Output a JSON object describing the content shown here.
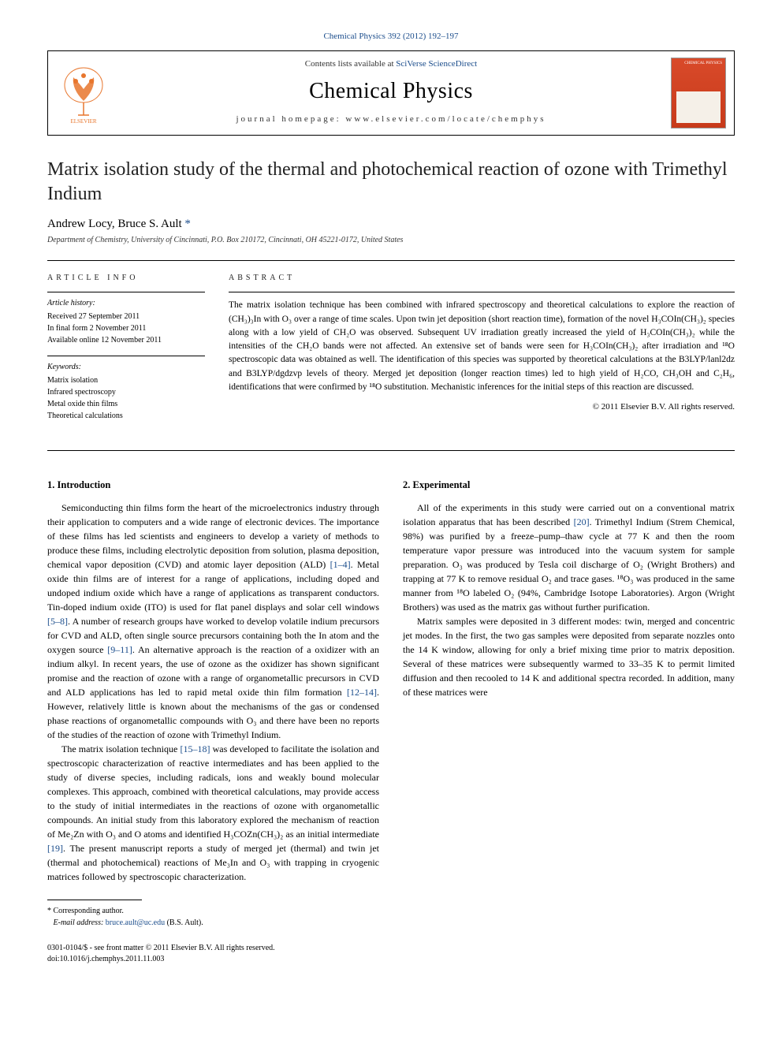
{
  "header": {
    "citation_link_text": "Chemical Physics 392 (2012) 192–197",
    "citation_url": "#"
  },
  "masthead": {
    "contents_prefix": "Contents lists available at ",
    "contents_link_text": "SciVerse ScienceDirect",
    "journal_name": "Chemical Physics",
    "homepage_prefix": "journal homepage: ",
    "homepage_url_text": "www.elsevier.com/locate/chemphys"
  },
  "article": {
    "title": "Matrix isolation study of the thermal and photochemical reaction of ozone with Trimethyl Indium",
    "authors_html": "Andrew Locy, Bruce S. Ault",
    "corresponding_marker": "*",
    "affiliation": "Department of Chemistry, University of Cincinnati, P.O. Box 210172, Cincinnati, OH 45221-0172, United States"
  },
  "info": {
    "heading": "ARTICLE INFO",
    "history_label": "Article history:",
    "received": "Received 27 September 2011",
    "final_form": "In final form 2 November 2011",
    "online": "Available online 12 November 2011",
    "keywords_label": "Keywords:",
    "keywords": [
      "Matrix isolation",
      "Infrared spectroscopy",
      "Metal oxide thin films",
      "Theoretical calculations"
    ]
  },
  "abstract": {
    "heading": "ABSTRACT",
    "text": "The matrix isolation technique has been combined with infrared spectroscopy and theoretical calculations to explore the reaction of (CH₃)₃In with O₃ over a range of time scales. Upon twin jet deposition (short reaction time), formation of the novel H₃COIn(CH₃)₂ species along with a low yield of CH₂O was observed. Subsequent UV irradiation greatly increased the yield of H₃COIn(CH₃)₂ while the intensities of the CH₂O bands were not affected. An extensive set of bands were seen for H₃COIn(CH₃)₂ after irradiation and ¹⁸O spectroscopic data was obtained as well. The identification of this species was supported by theoretical calculations at the B3LYP/lanl2dz and B3LYP/dgdzvp levels of theory. Merged jet deposition (longer reaction times) led to high yield of H₂CO, CH₃OH and C₂H₆, identifications that were confirmed by ¹⁸O substitution. Mechanistic inferences for the initial steps of this reaction are discussed.",
    "copyright": "© 2011 Elsevier B.V. All rights reserved."
  },
  "body": {
    "sec1_heading": "1. Introduction",
    "sec1_p1": "Semiconducting thin films form the heart of the microelectronics industry through their application to computers and a wide range of electronic devices. The importance of these films has led scientists and engineers to develop a variety of methods to produce these films, including electrolytic deposition from solution, plasma deposition, chemical vapor deposition (CVD) and atomic layer deposition (ALD) [1–4]. Metal oxide thin films are of interest for a range of applications, including doped and undoped indium oxide which have a range of applications as transparent conductors. Tin-doped indium oxide (ITO) is used for flat panel displays and solar cell windows [5–8]. A number of research groups have worked to develop volatile indium precursors for CVD and ALD, often single source precursors containing both the In atom and the oxygen source [9–11]. An alternative approach is the reaction of a oxidizer with an indium alkyl. In recent years, the use of ozone as the oxidizer has shown significant promise and the reaction of ozone with a range of organometallic precursors in CVD and ALD applications has led to rapid metal oxide thin film formation [12–14]. However, relatively little is known about the mechanisms of the gas or condensed phase reactions of organometallic compounds with O₃ and there have been no reports of the studies of the reaction of ozone with Trimethyl Indium.",
    "sec1_p2": "The matrix isolation technique [15–18] was developed to facilitate the isolation and spectroscopic characterization of reactive intermediates and has been applied to the study of diverse species, including radicals, ions and weakly bound molecular complexes. This approach, combined with theoretical calculations, may provide access to the study of initial intermediates in the reactions of ozone with organometallic compounds. An initial study from this laboratory explored the mechanism of reaction of Me₂Zn with O₃ and O atoms and identified H₃COZn(CH₃)₂ as an initial intermediate [19]. The present manuscript reports a study of merged jet (thermal) and twin jet (thermal and photochemical) reactions of Me₃In and O₃ with trapping in cryogenic matrices followed by spectroscopic characterization.",
    "sec2_heading": "2. Experimental",
    "sec2_p1": "All of the experiments in this study were carried out on a conventional matrix isolation apparatus that has been described [20]. Trimethyl Indium (Strem Chemical, 98%) was purified by a freeze–pump–thaw cycle at 77 K and then the room temperature vapor pressure was introduced into the vacuum system for sample preparation. O₃ was produced by Tesla coil discharge of O₂ (Wright Brothers) and trapping at 77 K to remove residual O₂ and trace gases. ¹⁸O₃ was produced in the same manner from ¹⁸O labeled O₂ (94%, Cambridge Isotope Laboratories). Argon (Wright Brothers) was used as the matrix gas without further purification.",
    "sec2_p2": "Matrix samples were deposited in 3 different modes: twin, merged and concentric jet modes. In the first, the two gas samples were deposited from separate nozzles onto the 14 K window, allowing for only a brief mixing time prior to matrix deposition. Several of these matrices were subsequently warmed to 33–35 K to permit limited diffusion and then recooled to 14 K and additional spectra recorded. In addition, many of these matrices were"
  },
  "footnote": {
    "marker": "*",
    "label": "Corresponding author.",
    "email_label": "E-mail address:",
    "email": "bruce.ault@uc.edu",
    "email_suffix": "(B.S. Ault)."
  },
  "footer": {
    "front_matter": "0301-0104/$ - see front matter © 2011 Elsevier B.V. All rights reserved.",
    "doi": "doi:10.1016/j.chemphys.2011.11.003"
  },
  "colors": {
    "link": "#1a4c8b",
    "text": "#000000",
    "cover_bg": "#d94a2a"
  }
}
